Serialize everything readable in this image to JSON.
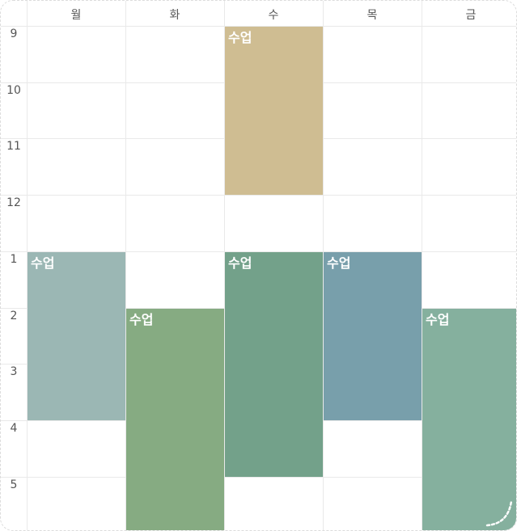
{
  "days": [
    "월",
    "화",
    "수",
    "목",
    "금"
  ],
  "hours": [
    "9",
    "10",
    "11",
    "12",
    "1",
    "2",
    "3",
    "4",
    "5"
  ],
  "events": [
    {
      "day": "수",
      "start": "9",
      "end": "12",
      "label": "수업",
      "color": "#cfbd92"
    },
    {
      "day": "월",
      "start": "1",
      "end": "4",
      "label": "수업",
      "color": "#9bb7b4"
    },
    {
      "day": "화",
      "start": "2",
      "end": "6",
      "label": "수업",
      "color": "#86ab82"
    },
    {
      "day": "수",
      "start": "1",
      "end": "5",
      "label": "수업",
      "color": "#73a18a"
    },
    {
      "day": "목",
      "start": "1",
      "end": "4",
      "label": "수업",
      "color": "#789fab"
    },
    {
      "day": "금",
      "start": "2",
      "end": "6",
      "label": "수업",
      "color": "#85b09e"
    }
  ],
  "colors": {
    "grid": "#e9e9e9",
    "header_text": "#555555"
  },
  "icons": {
    "corner": "resize-corner-icon"
  }
}
